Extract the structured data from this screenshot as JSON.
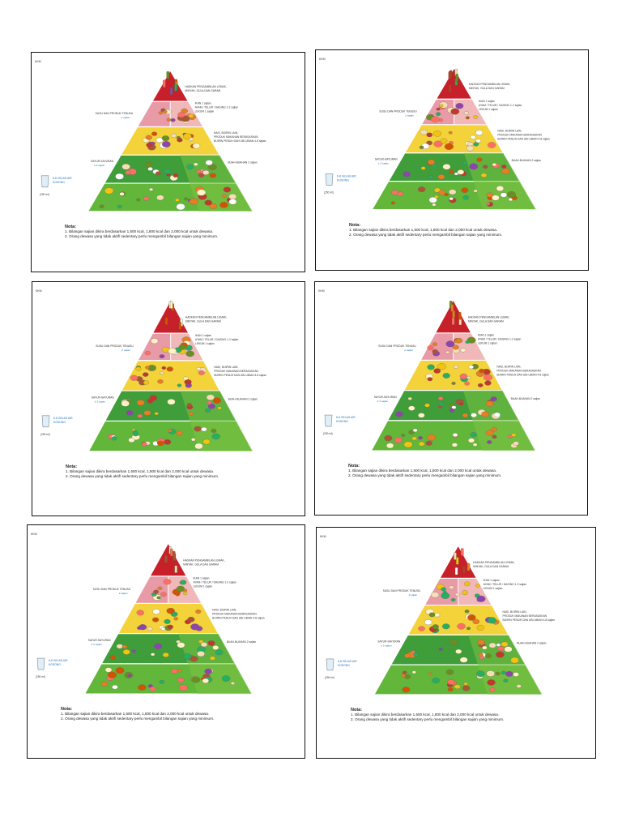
{
  "pyramid": {
    "corner_label": "KKM",
    "labels": {
      "top": [
        "HADKAN PENGAMBILAN LEMAK,",
        "MINYAK, GULA DAN GARAM"
      ],
      "dairy": "SUSU DAN PRODUK TENUSU",
      "dairy_serving": "2 sajian",
      "protein_lines": [
        "IKAN 1 sajian",
        "AYAM / TELUR / DAGING 1-2 sajian",
        "LEKUM 1 sajian"
      ],
      "grains_lines": [
        "NASI, BIJIRIN LAIN,",
        "PRODUK MAKANAN BERASASKAN",
        "BIJIRIN PENUH DAN UBI-UBIAN 4-8 sajian"
      ],
      "veg": "SAYUR-SAYURAN",
      "veg_serving": "≥ 3 sajian",
      "fruit": "BUAH-BUAHAN 2 sajian",
      "water": [
        "6-8 GELAS AIR",
        "KOSONG"
      ],
      "water_unit": "(250 ml)"
    },
    "notes": {
      "title": "Nota:",
      "items": [
        "1.  Bilangan sajian dikira berdasarkan 1,500 kcal, 1,800 kcal dan 2,000 kcal untuk dewasa.",
        "2.  Orang dewasa yang tidak aktif/ sedentary perlu mengambil bilangan sajian yang minimum."
      ]
    }
  },
  "colors": {
    "top_red": "#c8202b",
    "dairy_pink": "#e89aa6",
    "protein_pink": "#f0b8b8",
    "grains_yellow": "#f3d23a",
    "veg_green": "#3f9d3a",
    "fruit_green": "#62b63a",
    "label_blue": "#1f6fb4"
  }
}
